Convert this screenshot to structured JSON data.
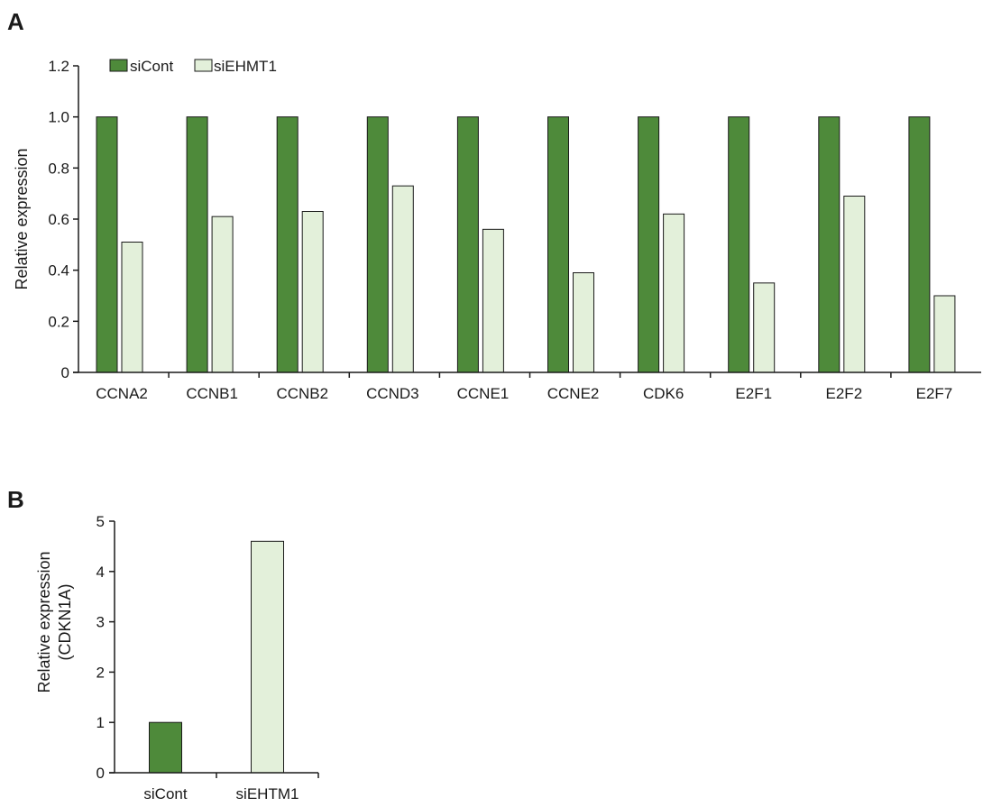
{
  "panels": {
    "a_label": "A",
    "b_label": "B"
  },
  "colors": {
    "siCont": "#4e8a3a",
    "siEHMT1": "#e3f0da",
    "stroke": "#1a1a1a"
  },
  "chart_data": [
    {
      "panel": "A",
      "type": "bar",
      "categories": [
        "CCNA2",
        "CCNB1",
        "CCNB2",
        "CCND3",
        "CCNE1",
        "CCNE2",
        "CDK6",
        "E2F1",
        "E2F2",
        "E2F7"
      ],
      "series": [
        {
          "name": "siCont",
          "values": [
            1.0,
            1.0,
            1.0,
            1.0,
            1.0,
            1.0,
            1.0,
            1.0,
            1.0,
            1.0
          ]
        },
        {
          "name": "siEHMT1",
          "values": [
            0.51,
            0.61,
            0.63,
            0.73,
            0.56,
            0.39,
            0.62,
            0.35,
            0.69,
            0.3
          ]
        }
      ],
      "ylabel": "Relative expression",
      "xlabel": "",
      "ylim": [
        0,
        1.2
      ],
      "yticks": [
        "0",
        "0.2",
        "0.4",
        "0.6",
        "0.8",
        "1.0",
        "1.2"
      ],
      "legend": "top-left",
      "grid": false
    },
    {
      "panel": "B",
      "type": "bar",
      "categories": [
        "siCont",
        "siEHTM1"
      ],
      "values": [
        1.0,
        4.6
      ],
      "ylabel": "Relative expression",
      "ylabel2": "(CDKN1A)",
      "xlabel": "",
      "ylim": [
        0,
        5
      ],
      "yticks": [
        "0",
        "1",
        "2",
        "3",
        "4",
        "5"
      ],
      "grid": false
    }
  ]
}
